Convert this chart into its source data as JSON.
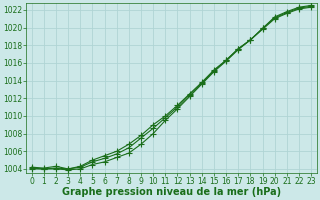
{
  "x": [
    0,
    1,
    2,
    3,
    4,
    5,
    6,
    7,
    8,
    9,
    10,
    11,
    12,
    13,
    14,
    15,
    16,
    17,
    18,
    19,
    20,
    21,
    22,
    23
  ],
  "line1": [
    1004.2,
    1004.1,
    1004.3,
    1004.0,
    1004.3,
    1005.0,
    1005.5,
    1006.0,
    1006.8,
    1007.8,
    1009.0,
    1010.0,
    1011.2,
    1012.5,
    1013.8,
    1015.2,
    1016.3,
    1017.6,
    1018.6,
    1019.8,
    1021.0,
    1021.6,
    1022.1,
    1022.3
  ],
  "line2": [
    1004.0,
    1004.0,
    1004.0,
    1003.9,
    1004.0,
    1004.5,
    1004.8,
    1005.3,
    1005.8,
    1006.8,
    1008.0,
    1009.5,
    1010.8,
    1012.2,
    1013.6,
    1015.0,
    1016.2,
    1017.5,
    1018.6,
    1019.9,
    1021.2,
    1021.8,
    1022.3,
    1022.5
  ],
  "line3": [
    1004.1,
    1004.0,
    1004.1,
    1004.0,
    1004.2,
    1004.8,
    1005.2,
    1005.7,
    1006.4,
    1007.5,
    1008.6,
    1009.8,
    1011.0,
    1012.4,
    1013.7,
    1015.1,
    1016.3,
    1017.6,
    1018.6,
    1019.9,
    1021.1,
    1021.7,
    1022.2,
    1022.4
  ],
  "ylim": [
    1003.5,
    1022.8
  ],
  "yticks": [
    1004,
    1006,
    1008,
    1010,
    1012,
    1014,
    1016,
    1018,
    1020,
    1022
  ],
  "xlim": [
    -0.5,
    23.5
  ],
  "xticks": [
    0,
    1,
    2,
    3,
    4,
    5,
    6,
    7,
    8,
    9,
    10,
    11,
    12,
    13,
    14,
    15,
    16,
    17,
    18,
    19,
    20,
    21,
    22,
    23
  ],
  "xlabel": "Graphe pression niveau de la mer (hPa)",
  "line_color": "#1a6e1a",
  "bg_color": "#cce8e8",
  "marker": "+",
  "markersize": 4.0,
  "linewidth": 0.8,
  "grid_color": "#b0d4d4",
  "tick_color": "#1a6e1a",
  "label_color": "#1a6e1a",
  "xlabel_fontsize": 7,
  "tick_fontsize": 5.5
}
